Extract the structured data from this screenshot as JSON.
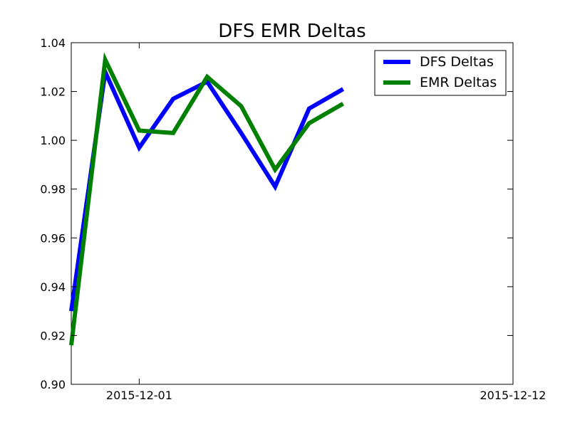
{
  "chart_data": {
    "type": "line",
    "title": "DFS EMR Deltas",
    "xlabel": "",
    "ylabel": "",
    "x_axis_type": "date",
    "xlim": [
      "2015-11-29",
      "2015-12-12"
    ],
    "ylim": [
      0.9,
      1.04
    ],
    "x_ticks": [
      "2015-12-01",
      "2015-12-12"
    ],
    "y_ticks": [
      0.9,
      0.92,
      0.94,
      0.96,
      0.98,
      1.0,
      1.02,
      1.04
    ],
    "y_tick_labels": [
      "0.90",
      "0.92",
      "0.94",
      "0.96",
      "0.98",
      "1.00",
      "1.02",
      "1.04"
    ],
    "x": [
      "2015-11-29",
      "2015-11-30",
      "2015-12-01",
      "2015-12-02",
      "2015-12-03",
      "2015-12-04",
      "2015-12-05",
      "2015-12-06",
      "2015-12-07"
    ],
    "series": [
      {
        "name": "DFS Deltas",
        "color": "#0000ff",
        "values": [
          0.93,
          1.028,
          0.997,
          1.017,
          1.024,
          1.003,
          0.981,
          1.013,
          1.021
        ]
      },
      {
        "name": "EMR Deltas",
        "color": "#008000",
        "values": [
          0.916,
          1.033,
          1.004,
          1.003,
          1.026,
          1.014,
          0.988,
          1.007,
          1.015
        ]
      }
    ],
    "legend_position": "top-right",
    "grid": false
  }
}
